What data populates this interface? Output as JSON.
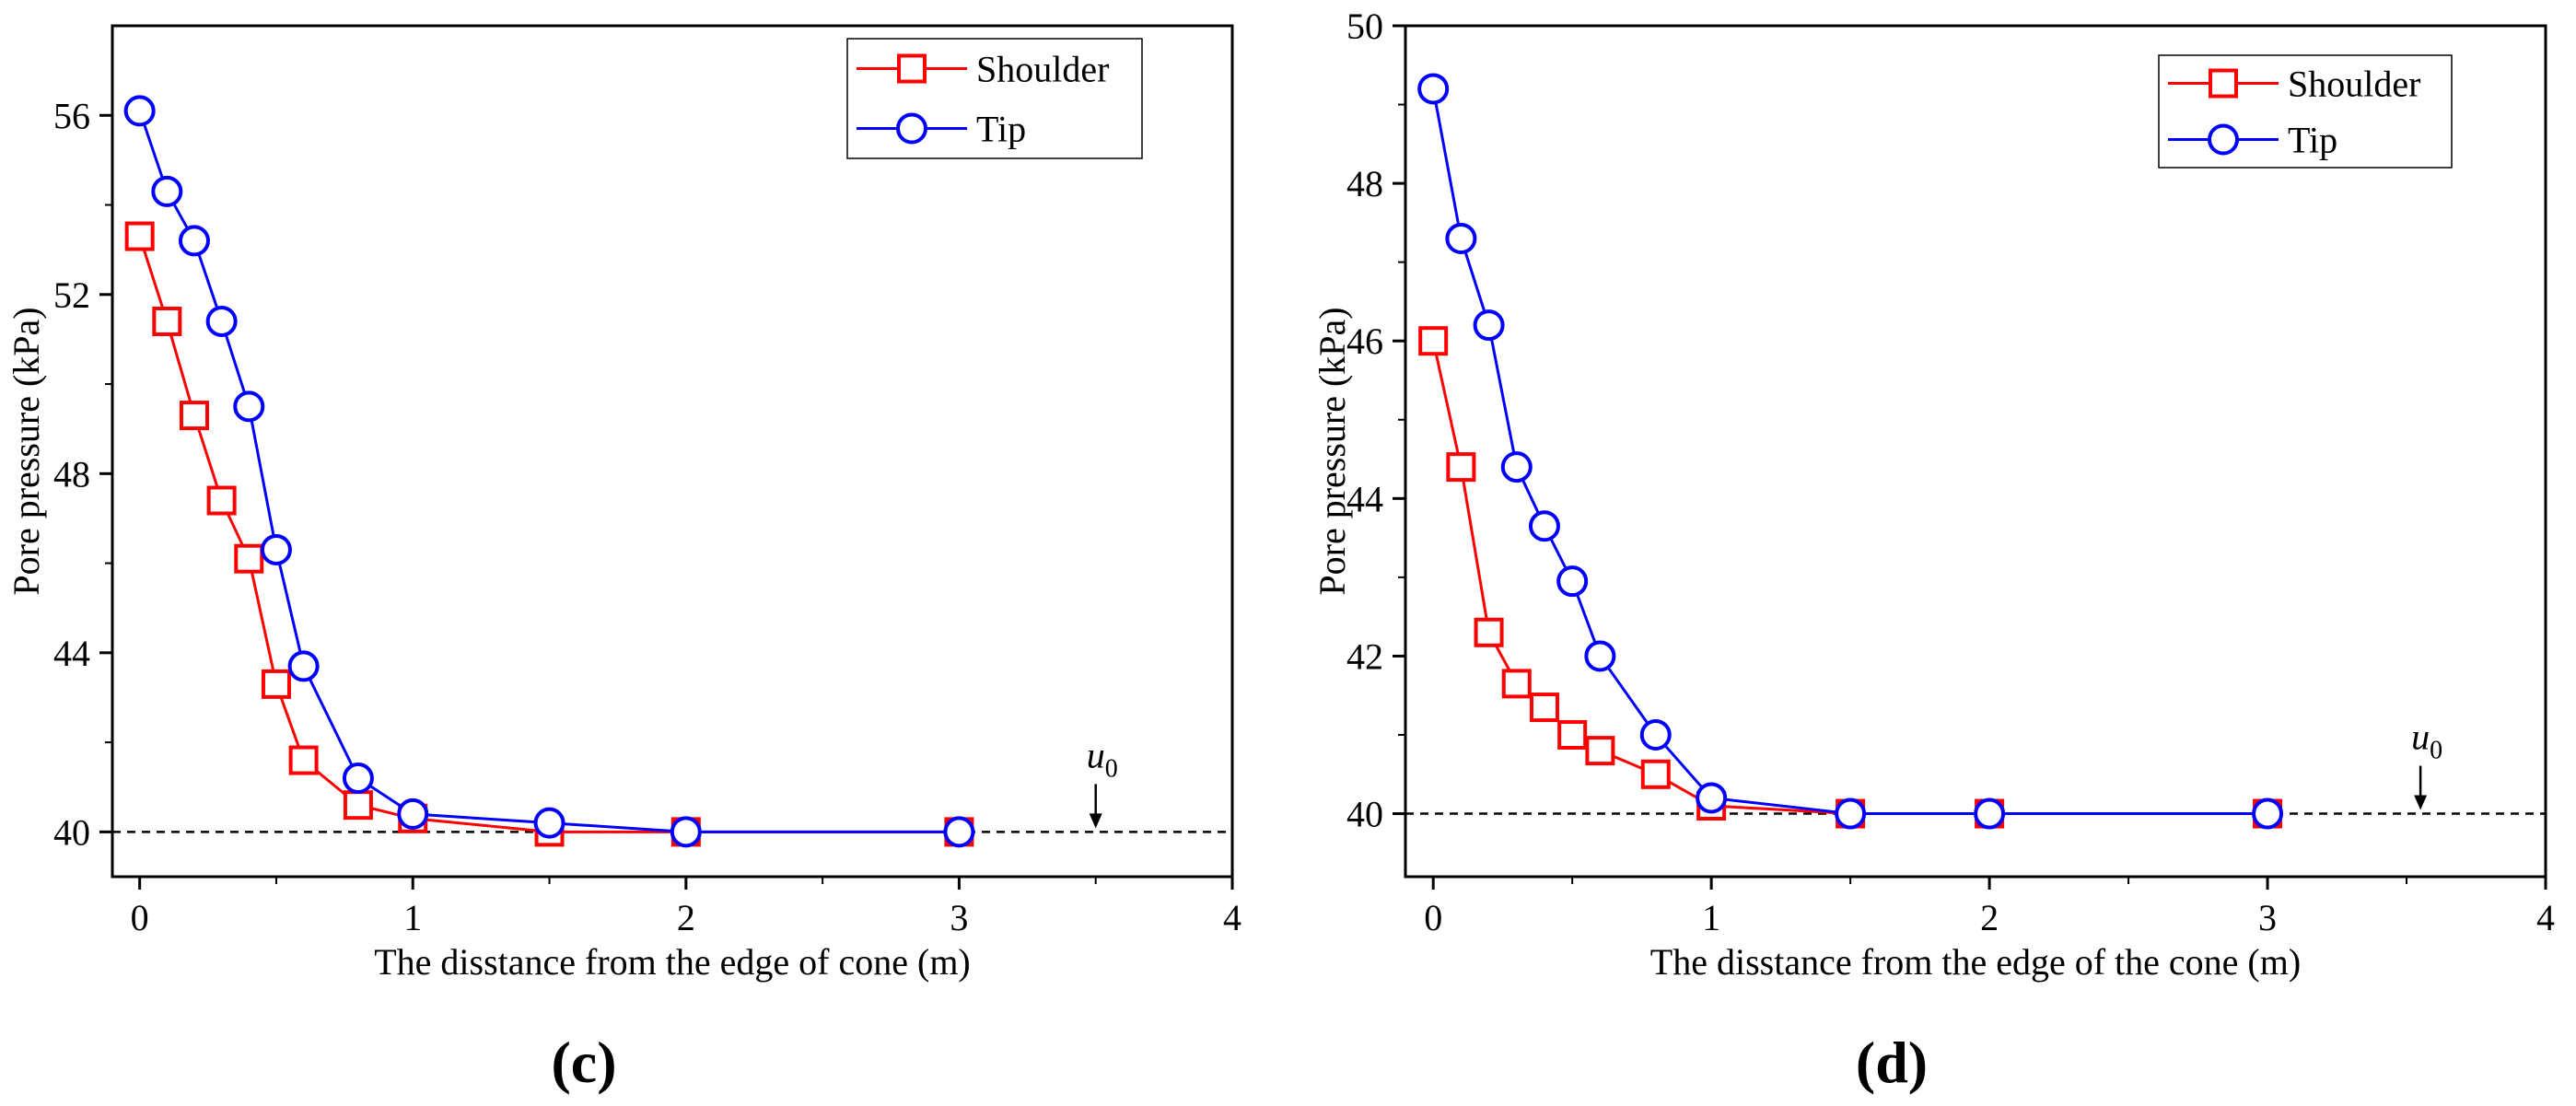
{
  "chart_data": [
    {
      "type": "line",
      "panel_label": "(c)",
      "xlabel": "The disstance from the edge of cone (m)",
      "ylabel": "Pore pressure (kPa)",
      "xlim": [
        -0.1,
        4
      ],
      "ylim": [
        39,
        58
      ],
      "xticks": [
        0,
        1,
        2,
        3,
        4
      ],
      "yticks": [
        40,
        44,
        48,
        52,
        56
      ],
      "tick_labels_x": [
        "0",
        "1",
        "2",
        "3",
        "4"
      ],
      "tick_labels_y": [
        "40",
        "44",
        "48",
        "52",
        "56"
      ],
      "legend_position": "top-right",
      "reference_line": {
        "y": 40,
        "label": "u",
        "subscript": "0",
        "arrow_x": 3.5
      },
      "series": [
        {
          "name": "Shoulder",
          "color": "#ff0000",
          "marker": "square",
          "x": [
            0,
            0.1,
            0.2,
            0.3,
            0.4,
            0.5,
            0.6,
            0.8,
            1,
            1.5,
            2,
            3
          ],
          "y": [
            53.3,
            51.4,
            49.3,
            47.4,
            46.1,
            43.3,
            41.6,
            40.6,
            40.3,
            40.0,
            40.0,
            40.0
          ]
        },
        {
          "name": "Tip",
          "color": "#0000ff",
          "marker": "circle",
          "x": [
            0,
            0.1,
            0.2,
            0.3,
            0.4,
            0.5,
            0.6,
            0.8,
            1,
            1.5,
            2,
            3
          ],
          "y": [
            56.1,
            54.3,
            53.2,
            51.4,
            49.5,
            46.3,
            43.7,
            41.2,
            40.4,
            40.2,
            40.0,
            40.0
          ]
        }
      ]
    },
    {
      "type": "line",
      "panel_label": "(d)",
      "xlabel": "The disstance from the edge of the cone (m)",
      "ylabel": "Pore pressure (kPa)",
      "xlim": [
        -0.1,
        4
      ],
      "ylim": [
        39.2,
        50
      ],
      "xticks": [
        0,
        1,
        2,
        3,
        4
      ],
      "yticks": [
        40,
        42,
        44,
        46,
        48,
        50
      ],
      "tick_labels_x": [
        "0",
        "1",
        "2",
        "3",
        "4"
      ],
      "tick_labels_y": [
        "40",
        "42",
        "44",
        "46",
        "48",
        "50"
      ],
      "legend_position": "top-right",
      "reference_line": {
        "y": 40,
        "label": "u",
        "subscript": "0",
        "arrow_x": 3.55
      },
      "series": [
        {
          "name": "Shoulder",
          "color": "#ff0000",
          "marker": "square",
          "x": [
            0,
            0.1,
            0.2,
            0.3,
            0.4,
            0.5,
            0.6,
            0.8,
            1,
            1.5,
            2,
            3
          ],
          "y": [
            46.0,
            44.4,
            42.3,
            41.65,
            41.35,
            41.0,
            40.8,
            40.5,
            40.1,
            40.0,
            40.0,
            40.0
          ]
        },
        {
          "name": "Tip",
          "color": "#0000ff",
          "marker": "circle",
          "x": [
            0,
            0.1,
            0.2,
            0.3,
            0.4,
            0.5,
            0.6,
            0.8,
            1,
            1.5,
            2,
            3
          ],
          "y": [
            49.2,
            47.3,
            46.2,
            44.4,
            43.65,
            42.95,
            42.0,
            41.0,
            40.2,
            40.0,
            40.0,
            40.0
          ]
        }
      ]
    }
  ]
}
